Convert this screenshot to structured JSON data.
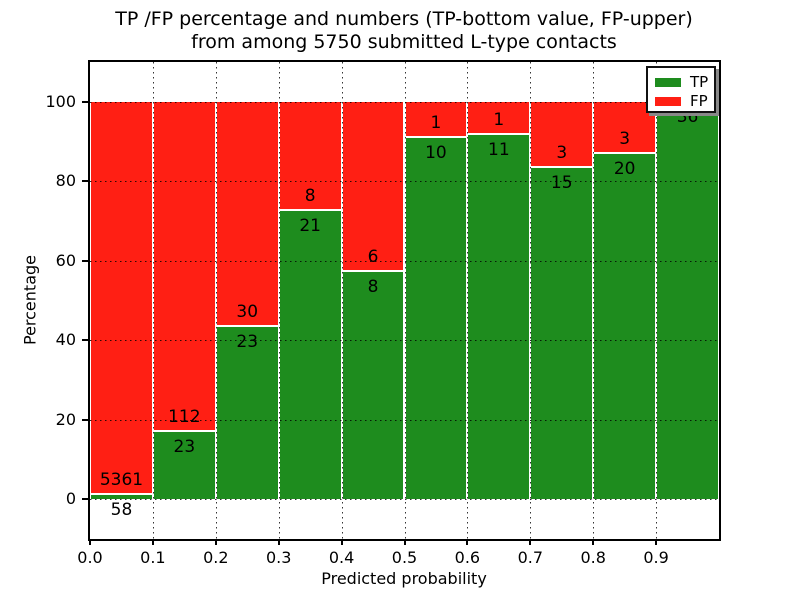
{
  "title": {
    "line1": "TP /FP percentage and numbers (TP-bottom value, FP-upper)",
    "line2": "from among 5750 submitted L-type contacts"
  },
  "chart_data": {
    "type": "bar",
    "stacked": true,
    "normalized_to_percent": true,
    "title": "TP /FP percentage and numbers (TP-bottom value, FP-upper) from among 5750 submitted L-type contacts",
    "xlabel": "Predicted probability",
    "ylabel": "Percentage",
    "categories": [
      "0.0",
      "0.1",
      "0.2",
      "0.3",
      "0.4",
      "0.5",
      "0.6",
      "0.7",
      "0.8",
      "0.9"
    ],
    "bin_width": 0.1,
    "series": [
      {
        "name": "TP",
        "color": "#1e8c1e",
        "counts": [
          58,
          23,
          23,
          21,
          8,
          10,
          11,
          15,
          20,
          36
        ],
        "percent": [
          1.07,
          17.04,
          43.4,
          72.41,
          57.14,
          90.91,
          91.67,
          83.33,
          86.96,
          100.0
        ]
      },
      {
        "name": "FP",
        "color": "#ff1f14",
        "counts": [
          5361,
          112,
          30,
          8,
          6,
          1,
          1,
          3,
          3,
          0
        ],
        "percent": [
          98.93,
          82.96,
          56.6,
          27.59,
          42.86,
          9.09,
          8.33,
          16.67,
          13.04,
          0.0
        ]
      }
    ],
    "total_contacts": 5750,
    "yticks": [
      0,
      20,
      40,
      60,
      80,
      100
    ],
    "xticks": [
      "0.0",
      "0.1",
      "0.2",
      "0.3",
      "0.4",
      "0.5",
      "0.6",
      "0.7",
      "0.8",
      "0.9"
    ],
    "ylim": [
      -10,
      110
    ],
    "xlim": [
      0.0,
      1.0
    ],
    "grid": "dotted",
    "legend": {
      "position": "upper right",
      "entries": [
        {
          "label": "TP",
          "color": "#1e8c1e"
        },
        {
          "label": "FP",
          "color": "#ff1f14"
        }
      ]
    }
  }
}
